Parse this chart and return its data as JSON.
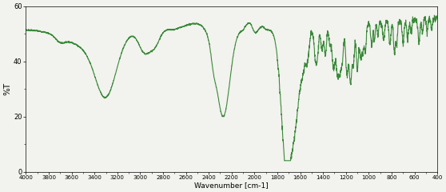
{
  "xlabel": "Wavenumber [cm-1]",
  "ylabel": "%T",
  "xlim": [
    4000,
    400
  ],
  "ylim": [
    0,
    60
  ],
  "yticks": [
    0,
    20,
    40,
    60
  ],
  "xticks": [
    4000,
    3800,
    3600,
    3400,
    3200,
    3000,
    2800,
    2600,
    2400,
    2200,
    2000,
    1800,
    1600,
    1400,
    1200,
    1000,
    800,
    600,
    400
  ],
  "line_color": "#3a8a3a",
  "bg_color": "#f2f2ee",
  "line_width": 0.8
}
